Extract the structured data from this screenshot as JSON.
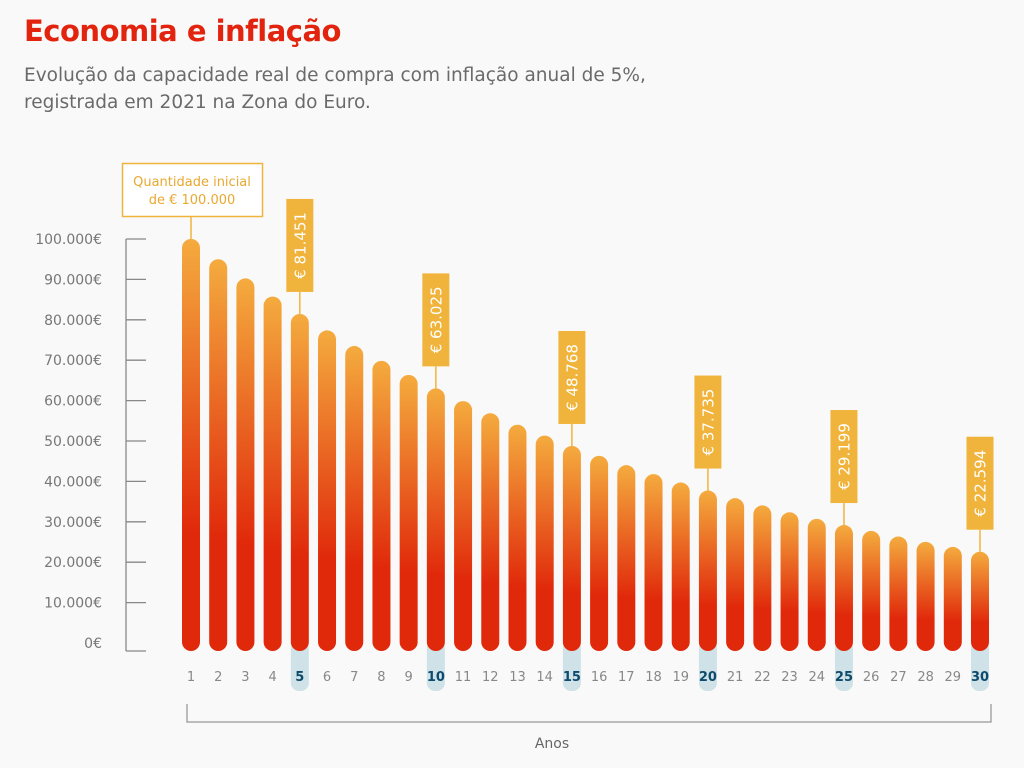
{
  "title": "Economia e inflação",
  "subtitle": "Evolução da capacidade real de compra com inflação anual de 5%, registrada em 2021 na Zona do Euro.",
  "colors": {
    "title": "#e2230e",
    "bar_top": "#f4ab3e",
    "bar_bottom": "#e0280a",
    "callout": "#f0b43c",
    "highlight_bg": "#cfe2e8",
    "highlight_text": "#0d4a6b"
  },
  "chart_data": {
    "type": "bar",
    "title": "Economia e inflação",
    "xlabel": "Anos",
    "ylabel": "",
    "ylim": [
      0,
      100000
    ],
    "yticks": [
      "0€",
      "10.000€",
      "20.000€",
      "30.000€",
      "40.000€",
      "50.000€",
      "60.000€",
      "70.000€",
      "80.000€",
      "90.000€",
      "100.000€"
    ],
    "categories": [
      "1",
      "2",
      "3",
      "4",
      "5",
      "6",
      "7",
      "8",
      "9",
      "10",
      "11",
      "12",
      "13",
      "14",
      "15",
      "16",
      "17",
      "18",
      "19",
      "20",
      "21",
      "22",
      "23",
      "24",
      "25",
      "26",
      "27",
      "28",
      "29",
      "30"
    ],
    "values": [
      100000,
      95000,
      90250,
      85738,
      81451,
      77378,
      73509,
      69834,
      66342,
      63025,
      59874,
      56880,
      54036,
      51334,
      48768,
      46329,
      44013,
      41812,
      39721,
      37735,
      35849,
      34056,
      32353,
      30736,
      29199,
      27739,
      26352,
      25035,
      23783,
      22594
    ],
    "highlighted": [
      "5",
      "10",
      "15",
      "20",
      "25",
      "30"
    ],
    "annotations": [
      {
        "year": "1",
        "text_line1": "Quantidade inicial",
        "text_line2": "de € 100.000"
      },
      {
        "year": "5",
        "text": "€ 81.451"
      },
      {
        "year": "10",
        "text": "€ 63.025"
      },
      {
        "year": "15",
        "text": "€ 48.768"
      },
      {
        "year": "20",
        "text": "€ 37.735"
      },
      {
        "year": "25",
        "text": "€ 29.199"
      },
      {
        "year": "30",
        "text": "€ 22.594"
      }
    ]
  }
}
